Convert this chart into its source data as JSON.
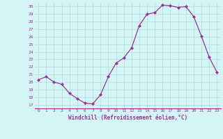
{
  "x": [
    0,
    1,
    2,
    3,
    4,
    5,
    6,
    7,
    8,
    9,
    10,
    11,
    12,
    13,
    14,
    15,
    16,
    17,
    18,
    19,
    20,
    21,
    22,
    23
  ],
  "y": [
    20.3,
    20.7,
    20.0,
    19.7,
    18.5,
    17.8,
    17.2,
    17.1,
    18.3,
    20.7,
    22.5,
    23.2,
    24.5,
    27.5,
    29.0,
    29.2,
    30.2,
    30.1,
    29.9,
    30.0,
    28.7,
    26.1,
    23.3,
    21.3
  ],
  "yticks": [
    17,
    18,
    19,
    20,
    21,
    22,
    23,
    24,
    25,
    26,
    27,
    28,
    29,
    30
  ],
  "xlabel": "Windchill (Refroidissement éolien,°C)",
  "line_color": "#993399",
  "marker_color": "#993399",
  "bg_color": "#d4f5f5",
  "grid_color": "#b8e0e0",
  "xlabel_color": "#993399",
  "tick_color": "#993399"
}
